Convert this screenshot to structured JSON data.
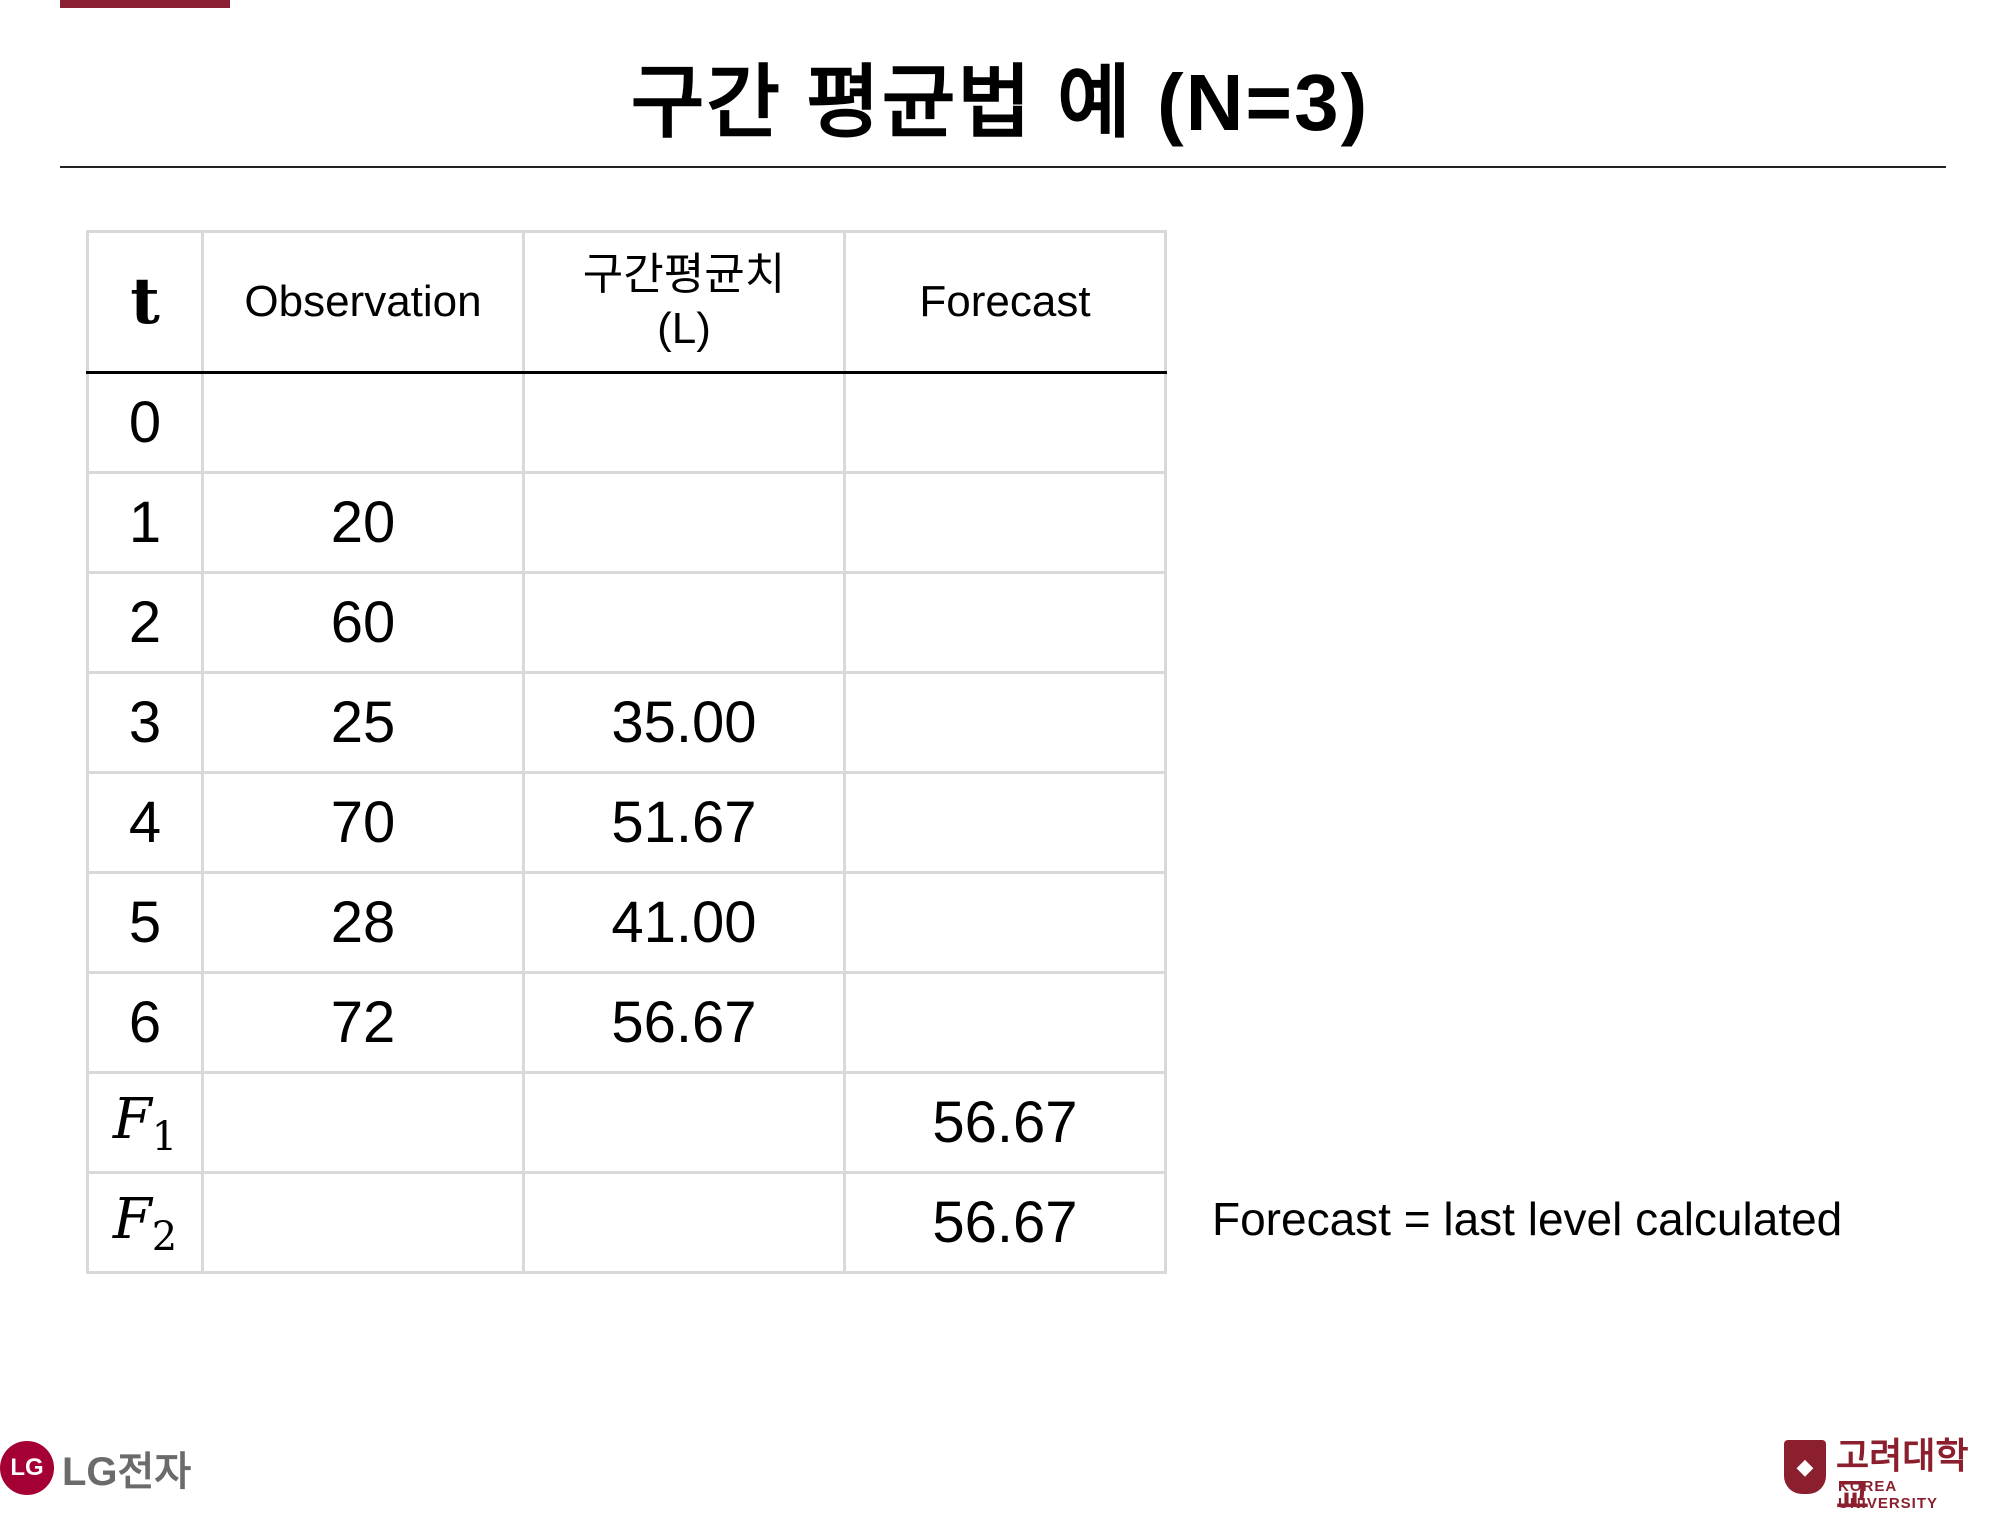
{
  "slide": {
    "title": "구간 평균법 예 (N=3)",
    "note": "Forecast = last level calculated"
  },
  "table": {
    "headers": {
      "t": "t",
      "observation": "Observation",
      "level_line1": "구간평균치",
      "level_line2": "(L)",
      "forecast": "Forecast"
    },
    "rows": [
      {
        "t": "0",
        "obs": "",
        "level": "",
        "forecast": ""
      },
      {
        "t": "1",
        "obs": "20",
        "level": "",
        "forecast": ""
      },
      {
        "t": "2",
        "obs": "60",
        "level": "",
        "forecast": ""
      },
      {
        "t": "3",
        "obs": "25",
        "level": "35.00",
        "forecast": ""
      },
      {
        "t": "4",
        "obs": "70",
        "level": "51.67",
        "forecast": ""
      },
      {
        "t": "5",
        "obs": "28",
        "level": "41.00",
        "forecast": ""
      },
      {
        "t": "6",
        "obs": "72",
        "level": "56.67",
        "forecast": ""
      }
    ],
    "forecast_rows": [
      {
        "symbol": "F",
        "sub": "1",
        "obs": "",
        "level": "",
        "forecast": "56.67"
      },
      {
        "symbol": "F",
        "sub": "2",
        "obs": "",
        "level": "",
        "forecast": "56.67"
      }
    ]
  },
  "logos": {
    "lg_mark": "LG",
    "lg_text": "LG전자",
    "ku_kor": "고려대학교",
    "ku_eng": "KOREA UNIVERSITY"
  },
  "colors": {
    "accent": "#8b2035",
    "lg_red": "#a50034",
    "ku_crimson": "#8b1f2e"
  }
}
